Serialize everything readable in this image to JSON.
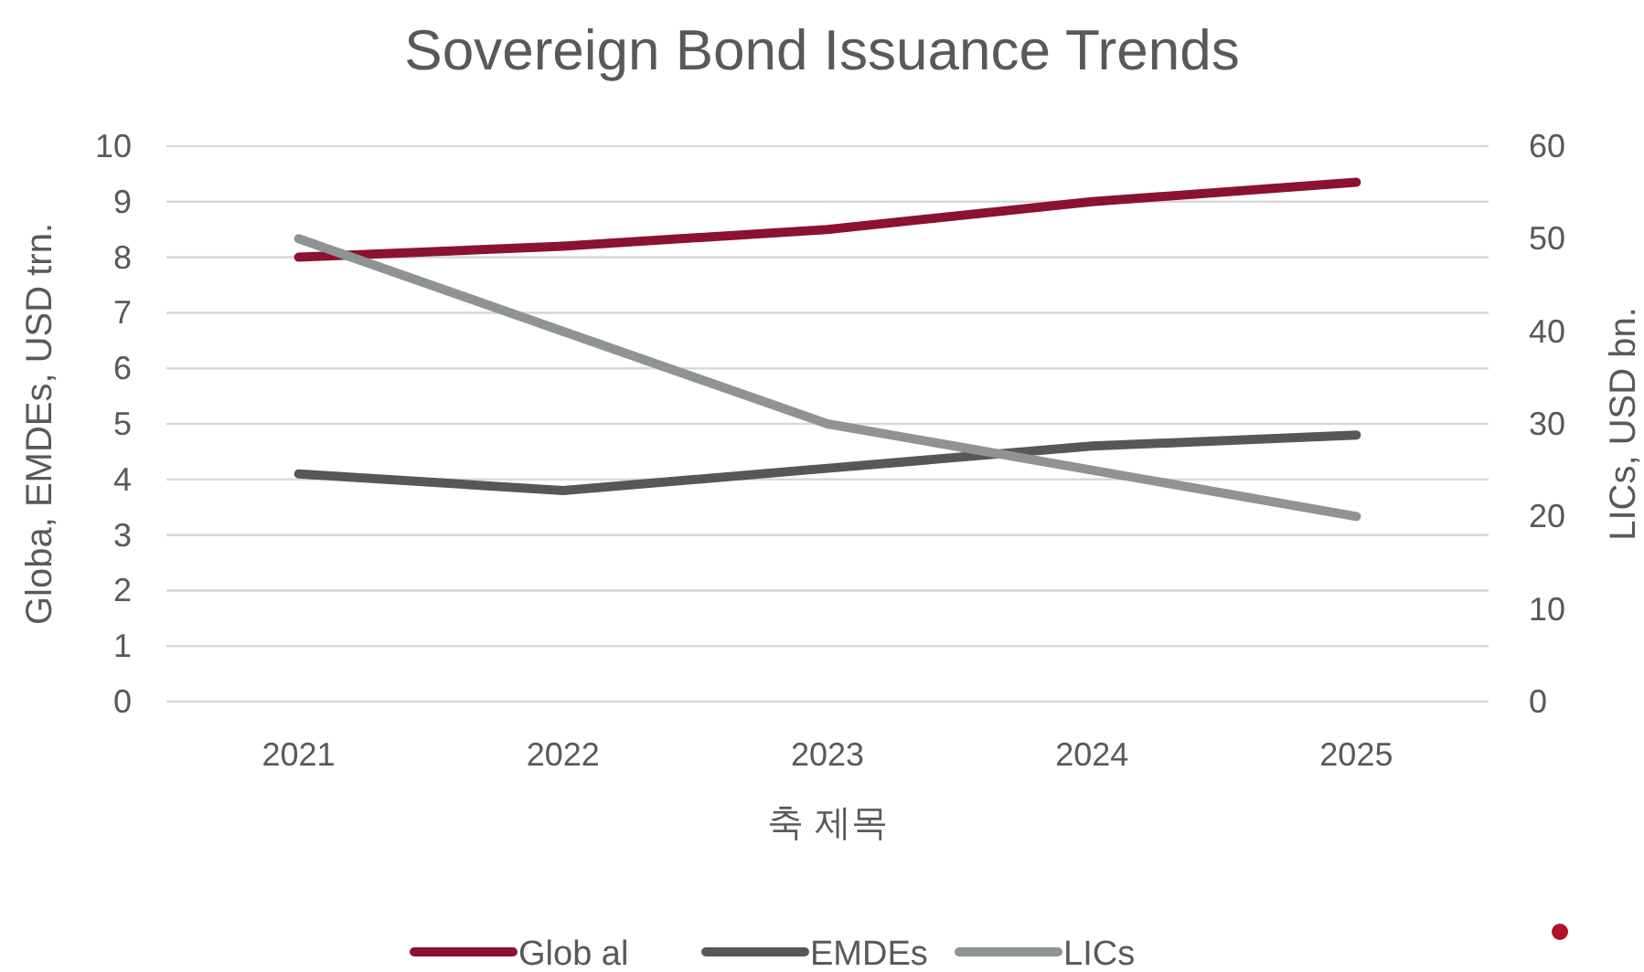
{
  "chart_data": {
    "type": "line",
    "title": "Sovereign Bond Issuance Trends",
    "xlabel": "축 제목",
    "ylabel": "Globa, EMDEs, USD trn.",
    "y2label": "LICs, USD bn.",
    "categories": [
      "2021",
      "2022",
      "2023",
      "2024",
      "2025"
    ],
    "series": [
      {
        "name": "Glob al",
        "color": "#8b1230",
        "values": [
          8.0,
          8.2,
          8.5,
          9.0,
          9.35
        ]
      },
      {
        "name": "EMDEs",
        "color": "#575757",
        "values": [
          4.1,
          3.8,
          4.2,
          4.6,
          4.8
        ]
      },
      {
        "name": "LICs",
        "color": "#8f9393",
        "values": [
          50,
          40,
          30,
          25,
          20
        ],
        "axis": "y2"
      }
    ],
    "ylim": [
      0,
      10
    ],
    "yticks": [
      0,
      1,
      2,
      3,
      4,
      5,
      6,
      7,
      8,
      9,
      10
    ],
    "y2lim": [
      0,
      60
    ],
    "y2ticks": [
      0,
      10,
      20,
      30,
      40,
      50,
      60
    ],
    "grid": "y",
    "legend": "bottom"
  }
}
